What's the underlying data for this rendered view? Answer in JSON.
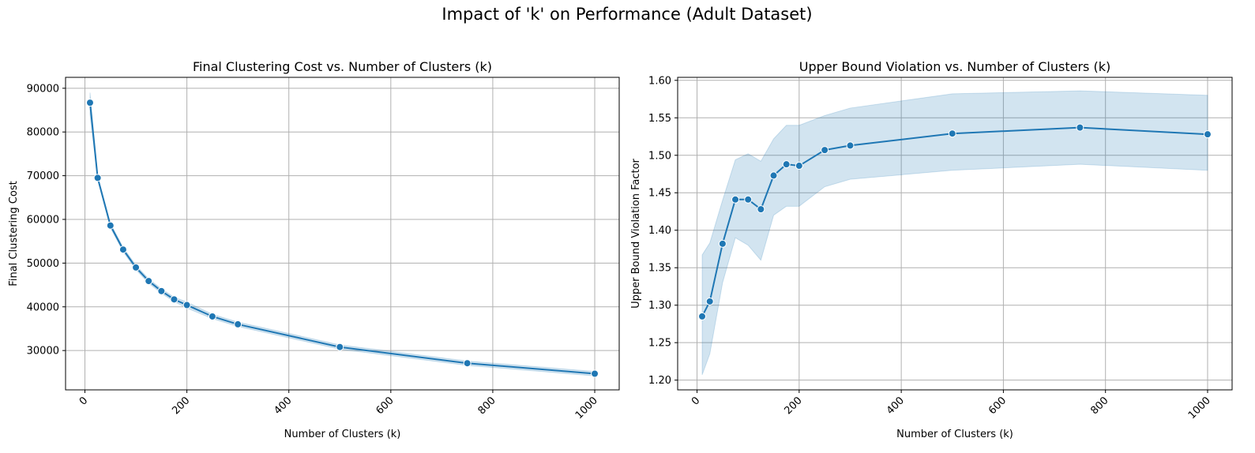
{
  "figure": {
    "title": "Impact of 'k' on Performance (Adult Dataset)"
  },
  "colors": {
    "line": "#1f77b4",
    "band": "#1f77b4",
    "marker_edge": "#ffffff",
    "grid": "#b0b0b0"
  },
  "chart_data": [
    {
      "type": "line",
      "title": "Final Clustering Cost vs. Number of Clusters (k)",
      "xlabel": "Number of Clusters (k)",
      "ylabel": "Final Clustering Cost",
      "xlim": [
        -38,
        1048
      ],
      "ylim": [
        21000,
        92500
      ],
      "xticks": [
        0,
        200,
        400,
        600,
        800,
        1000
      ],
      "yticks": [
        30000,
        40000,
        50000,
        60000,
        70000,
        80000,
        90000
      ],
      "xtick_rotation": 45,
      "grid": true,
      "markers": true,
      "confidence_band": true,
      "series": [
        {
          "x": [
            10,
            25,
            50,
            75,
            100,
            125,
            150,
            175,
            200,
            250,
            300,
            500,
            750,
            1000
          ],
          "y": [
            86700,
            69500,
            58600,
            53100,
            49000,
            45900,
            43600,
            41700,
            40400,
            37800,
            36000,
            30800,
            27100,
            24700
          ],
          "lower": [
            84000,
            69000,
            58100,
            52600,
            48500,
            45400,
            43100,
            41200,
            39700,
            37300,
            35500,
            30300,
            26600,
            24200
          ],
          "upper": [
            89000,
            70000,
            59100,
            53600,
            49500,
            46400,
            44100,
            42200,
            41100,
            38300,
            36500,
            31300,
            27600,
            25200
          ]
        }
      ]
    },
    {
      "type": "line",
      "title": "Upper Bound Violation vs. Number of Clusters (k)",
      "xlabel": "Number of Clusters (k)",
      "ylabel": "Upper Bound Violation Factor",
      "xlim": [
        -38,
        1048
      ],
      "ylim": [
        1.187,
        1.604
      ],
      "xticks": [
        0,
        200,
        400,
        600,
        800,
        1000
      ],
      "yticks": [
        1.2,
        1.25,
        1.3,
        1.35,
        1.4,
        1.45,
        1.5,
        1.55,
        1.6
      ],
      "ytick_labels": [
        "1.20",
        "1.25",
        "1.30",
        "1.35",
        "1.40",
        "1.45",
        "1.50",
        "1.55",
        "1.60"
      ],
      "xtick_rotation": 45,
      "grid": true,
      "markers": true,
      "confidence_band": true,
      "series": [
        {
          "x": [
            10,
            25,
            50,
            75,
            100,
            125,
            150,
            175,
            200,
            250,
            300,
            500,
            750,
            1000
          ],
          "y": [
            1.285,
            1.305,
            1.382,
            1.441,
            1.441,
            1.428,
            1.473,
            1.488,
            1.486,
            1.507,
            1.513,
            1.529,
            1.537,
            1.528
          ],
          "lower": [
            1.207,
            1.235,
            1.33,
            1.39,
            1.38,
            1.36,
            1.42,
            1.432,
            1.432,
            1.458,
            1.468,
            1.48,
            1.488,
            1.48
          ],
          "upper": [
            1.367,
            1.383,
            1.44,
            1.494,
            1.502,
            1.492,
            1.522,
            1.54,
            1.54,
            1.553,
            1.563,
            1.582,
            1.586,
            1.58
          ]
        }
      ]
    }
  ]
}
